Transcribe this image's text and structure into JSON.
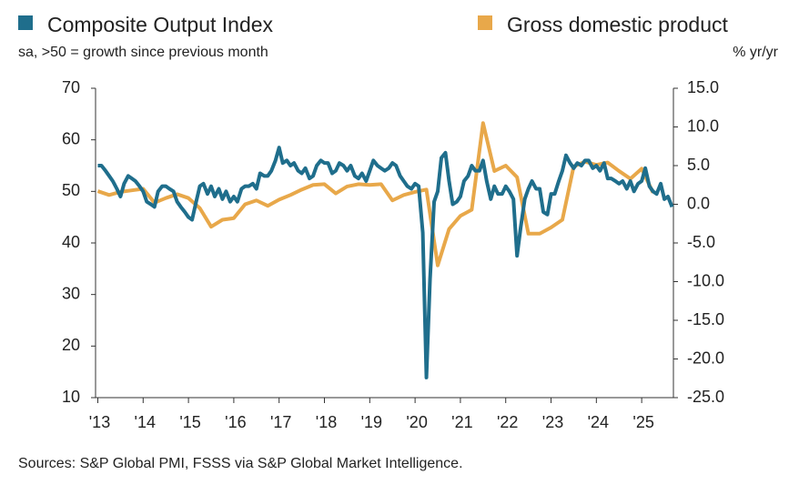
{
  "chart_data": {
    "type": "line",
    "ylabel": "sa, >50 = growth since previous month",
    "y2label": "% yr/yr",
    "source": "Sources: S&P Global PMI, FSSS via S&P Global Market Intelligence.",
    "xlim": [
      2012.95,
      2025.7
    ],
    "xticks": [
      {
        "value": 2013,
        "label": "'13"
      },
      {
        "value": 2014,
        "label": "'14"
      },
      {
        "value": 2015,
        "label": "'15"
      },
      {
        "value": 2016,
        "label": "'16"
      },
      {
        "value": 2017,
        "label": "'17"
      },
      {
        "value": 2018,
        "label": "'18"
      },
      {
        "value": 2019,
        "label": "'19"
      },
      {
        "value": 2020,
        "label": "'20"
      },
      {
        "value": 2021,
        "label": "'21"
      },
      {
        "value": 2022,
        "label": "'22"
      },
      {
        "value": 2023,
        "label": "'23"
      },
      {
        "value": 2024,
        "label": "'24"
      },
      {
        "value": 2025,
        "label": "'25"
      }
    ],
    "ylim": [
      10,
      70
    ],
    "yticks": [
      10,
      20,
      30,
      40,
      50,
      60,
      70
    ],
    "y2lim": [
      -25,
      15
    ],
    "y2ticks": [
      {
        "value": -25,
        "label": "-25.0"
      },
      {
        "value": -20,
        "label": "-20.0"
      },
      {
        "value": -15,
        "label": "-15.0"
      },
      {
        "value": -10,
        "label": "-10.0"
      },
      {
        "value": -5,
        "label": "-5.0"
      },
      {
        "value": 0,
        "label": "0.0"
      },
      {
        "value": 5,
        "label": "5.0"
      },
      {
        "value": 10,
        "label": "10.0"
      },
      {
        "value": 15,
        "label": "15.0"
      }
    ],
    "series": [
      {
        "name": "Composite Output Index",
        "color": "#1f6e8c",
        "axis": "y",
        "x": [
          2013,
          2013.08,
          2013.17,
          2013.25,
          2013.33,
          2013.42,
          2013.5,
          2013.58,
          2013.67,
          2013.75,
          2013.83,
          2013.92,
          2014,
          2014.08,
          2014.17,
          2014.25,
          2014.33,
          2014.42,
          2014.5,
          2014.58,
          2014.67,
          2014.75,
          2014.83,
          2014.92,
          2015,
          2015.08,
          2015.17,
          2015.25,
          2015.33,
          2015.42,
          2015.5,
          2015.58,
          2015.67,
          2015.75,
          2015.83,
          2015.92,
          2016,
          2016.08,
          2016.17,
          2016.25,
          2016.33,
          2016.42,
          2016.5,
          2016.58,
          2016.67,
          2016.75,
          2016.83,
          2016.92,
          2017,
          2017.08,
          2017.17,
          2017.25,
          2017.33,
          2017.42,
          2017.5,
          2017.58,
          2017.67,
          2017.75,
          2017.83,
          2017.92,
          2018,
          2018.08,
          2018.17,
          2018.25,
          2018.33,
          2018.42,
          2018.5,
          2018.58,
          2018.67,
          2018.75,
          2018.83,
          2018.92,
          2019,
          2019.08,
          2019.17,
          2019.25,
          2019.33,
          2019.42,
          2019.5,
          2019.58,
          2019.67,
          2019.75,
          2019.83,
          2019.92,
          2020,
          2020.08,
          2020.17,
          2020.25,
          2020.33,
          2020.42,
          2020.5,
          2020.58,
          2020.67,
          2020.75,
          2020.83,
          2020.92,
          2021,
          2021.08,
          2021.17,
          2021.25,
          2021.33,
          2021.42,
          2021.5,
          2021.58,
          2021.67,
          2021.75,
          2021.83,
          2021.92,
          2022,
          2022.08,
          2022.17,
          2022.25,
          2022.33,
          2022.42,
          2022.5,
          2022.58,
          2022.67,
          2022.75,
          2022.83,
          2022.92,
          2023,
          2023.08,
          2023.17,
          2023.25,
          2023.33,
          2023.42,
          2023.5,
          2023.58,
          2023.67,
          2023.75,
          2023.83,
          2023.92,
          2024,
          2024.08,
          2024.17,
          2024.25,
          2024.33,
          2024.42,
          2024.5,
          2024.58,
          2024.67,
          2024.75,
          2024.83,
          2024.92,
          2025,
          2025.08,
          2025.17,
          2025.25,
          2025.33,
          2025.42,
          2025.5,
          2025.58,
          2025.67
        ],
        "values": [
          55,
          55,
          54,
          53,
          52,
          50.5,
          49,
          51.5,
          53,
          52.5,
          52,
          51,
          50,
          48,
          47.5,
          47,
          50,
          51,
          51,
          50.5,
          50,
          48,
          47,
          46,
          45,
          44.5,
          48,
          51,
          51.5,
          49.5,
          51,
          49,
          50.5,
          48.5,
          50,
          48,
          49,
          48,
          50.5,
          51,
          51,
          51.5,
          50.5,
          53.5,
          53,
          53,
          54,
          56,
          58.5,
          55.5,
          56,
          55,
          55.5,
          54,
          53.5,
          54.5,
          52.5,
          53,
          55,
          56,
          55.5,
          55.5,
          53.5,
          54,
          55.5,
          55,
          54,
          55,
          53,
          52.5,
          53.5,
          52,
          54,
          56,
          55,
          54.5,
          54,
          54.5,
          55.5,
          55,
          53,
          52,
          51,
          50.5,
          51.5,
          51,
          42,
          13.9,
          33,
          48,
          50,
          56.5,
          57.5,
          52,
          47.5,
          48,
          49,
          52,
          53,
          55,
          54,
          54,
          56,
          52,
          48.5,
          51,
          49.5,
          49.5,
          51,
          50,
          48.5,
          37.5,
          43,
          48.5,
          50.5,
          52,
          50.5,
          50.5,
          46,
          45.5,
          49.5,
          49.5,
          52,
          54,
          57,
          55.5,
          54.5,
          55.5,
          55,
          56,
          56,
          54.5,
          55,
          54,
          55.5,
          52.5,
          52.5,
          52,
          51.5,
          52,
          50.5,
          52,
          50,
          51.5,
          52,
          54.5,
          51,
          50,
          49.5,
          51.5,
          48.5,
          49,
          47
        ]
      },
      {
        "name": "Gross domestic product",
        "color": "#e8a84a",
        "axis": "y2",
        "x": [
          2013,
          2013.25,
          2013.5,
          2013.75,
          2014,
          2014.25,
          2014.5,
          2014.75,
          2015,
          2015.25,
          2015.5,
          2015.75,
          2016,
          2016.25,
          2016.5,
          2016.75,
          2017,
          2017.25,
          2017.5,
          2017.75,
          2018,
          2018.25,
          2018.5,
          2018.75,
          2019,
          2019.25,
          2019.5,
          2019.75,
          2020,
          2020.25,
          2020.5,
          2020.75,
          2021,
          2021.25,
          2021.5,
          2021.75,
          2022,
          2022.25,
          2022.5,
          2022.75,
          2023,
          2023.25,
          2023.5,
          2023.75,
          2024,
          2024.25,
          2024.5,
          2024.75,
          2025,
          2025.25
        ],
        "values": [
          1.7,
          1.2,
          1.6,
          1.8,
          2.0,
          0.2,
          0.8,
          1.3,
          0.8,
          -0.5,
          -2.9,
          -2.0,
          -1.8,
          0.0,
          0.5,
          -0.2,
          0.6,
          1.2,
          1.9,
          2.5,
          2.6,
          1.4,
          2.3,
          2.6,
          2.5,
          2.6,
          0.5,
          1.2,
          1.6,
          1.9,
          -7.9,
          -3.2,
          -1.5,
          -0.7,
          10.5,
          4.3,
          5.0,
          3.5,
          -3.8,
          -3.8,
          -3.0,
          -2.0,
          4.9,
          5.5,
          5.1,
          5.4,
          4.3,
          3.3,
          4.6,
          1.5
        ]
      }
    ]
  }
}
